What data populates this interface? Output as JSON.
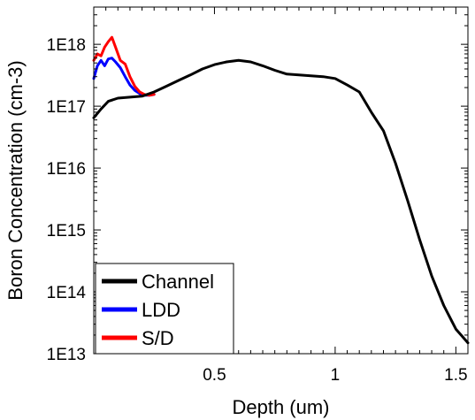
{
  "chart_data": {
    "type": "line",
    "title": "",
    "xlabel": "Depth (um)",
    "ylabel": "Boron Concentration (cm-3)",
    "xlim": [
      0,
      1.55
    ],
    "ylim": [
      10000000000000.0,
      4e+18
    ],
    "yscale": "log",
    "grid": false,
    "legend_position": "bottom-left",
    "x_ticks": [
      0.5,
      1,
      1.5
    ],
    "x_tick_labels": [
      "0.5",
      "1",
      "1.5"
    ],
    "y_ticks": [
      10000000000000.0,
      100000000000000.0,
      1000000000000000.0,
      1e+16,
      1e+17,
      1e+18
    ],
    "y_tick_labels": [
      "1E13",
      "1E14",
      "1E15",
      "1E16",
      "1E17",
      "1E18"
    ],
    "series": [
      {
        "name": "Channel",
        "color": "#000000",
        "x": [
          0,
          0.03,
          0.06,
          0.1,
          0.15,
          0.2,
          0.25,
          0.3,
          0.35,
          0.4,
          0.45,
          0.5,
          0.55,
          0.6,
          0.65,
          0.7,
          0.75,
          0.8,
          0.85,
          0.9,
          0.95,
          1.0,
          1.05,
          1.1,
          1.15,
          1.2,
          1.25,
          1.3,
          1.35,
          1.4,
          1.45,
          1.5,
          1.55
        ],
        "y": [
          6.5e+16,
          9e+16,
          1.2e+17,
          1.35e+17,
          1.4e+17,
          1.45e+17,
          1.7e+17,
          2.1e+17,
          2.6e+17,
          3.2e+17,
          4e+17,
          4.7e+17,
          5.2e+17,
          5.5e+17,
          5.2e+17,
          4.5e+17,
          3.8e+17,
          3.3e+17,
          3.2e+17,
          3.1e+17,
          3e+17,
          2.8e+17,
          2.2e+17,
          1.7e+17,
          8e+16,
          4e+16,
          1.2e+16,
          3000000000000000.0,
          700000000000000.0,
          180000000000000.0,
          60000000000000.0,
          25000000000000.0,
          15000000000000.0
        ]
      },
      {
        "name": "LDD",
        "color": "#0000ff",
        "x": [
          0,
          0.015,
          0.03,
          0.045,
          0.06,
          0.075,
          0.09,
          0.11,
          0.13,
          0.15,
          0.17,
          0.19,
          0.21,
          0.23,
          0.25
        ],
        "y": [
          2.8e+17,
          4.5e+17,
          5.5e+17,
          4.5e+17,
          5.8e+17,
          6e+17,
          5.2e+17,
          4.2e+17,
          3e+17,
          2.2e+17,
          1.8e+17,
          1.6e+17,
          1.5e+17,
          1.5e+17,
          1.55e+17
        ]
      },
      {
        "name": "S/D",
        "color": "#ff0000",
        "x": [
          0,
          0.015,
          0.03,
          0.045,
          0.06,
          0.075,
          0.09,
          0.11,
          0.13,
          0.15,
          0.17,
          0.19,
          0.21,
          0.23,
          0.25
        ],
        "y": [
          5.5e+17,
          7e+17,
          6.5e+17,
          9e+17,
          1.1e+18,
          1.3e+18,
          9e+17,
          5.5e+17,
          4.8e+17,
          3e+17,
          2.1e+17,
          1.7e+17,
          1.55e+17,
          1.5e+17,
          1.55e+17
        ]
      }
    ]
  }
}
